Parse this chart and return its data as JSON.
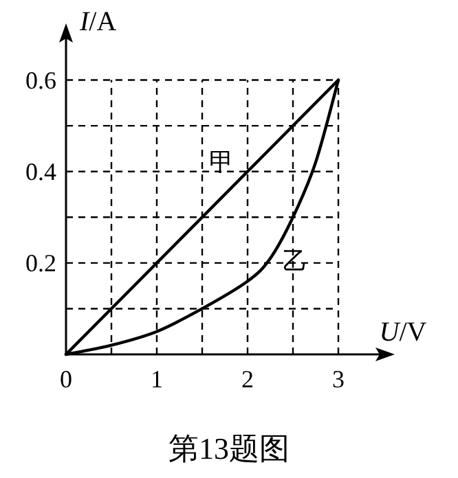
{
  "chart_data": {
    "type": "line",
    "xlabel": "U/V",
    "ylabel": "I/A",
    "x": [
      0,
      0.5,
      1,
      1.5,
      2,
      2.25,
      2.5,
      2.75,
      3
    ],
    "series": [
      {
        "name": "甲",
        "color": "#000000",
        "x": [
          0,
          3
        ],
        "values": [
          0,
          0.6
        ]
      },
      {
        "name": "乙",
        "color": "#000000",
        "values": [
          0,
          0.02,
          0.05,
          0.1,
          0.16,
          0.21,
          0.3,
          0.42,
          0.6
        ]
      }
    ],
    "xlim": [
      0,
      3.5
    ],
    "ylim": [
      0,
      0.7
    ],
    "xticks": [
      0,
      {
        "value": 0.5,
        "label": null
      },
      1,
      {
        "value": 1.5,
        "label": null
      },
      2,
      {
        "value": 2.5,
        "label": null
      },
      3
    ],
    "yticks": [
      {
        "value": 0,
        "label": null
      },
      {
        "value": 0.1,
        "label": null
      },
      0.2,
      {
        "value": 0.3,
        "label": null
      },
      0.4,
      {
        "value": 0.5,
        "label": null
      },
      0.6
    ],
    "grid": true,
    "legend": false,
    "marker": "none",
    "line_style": "solid",
    "annotations": [
      "第13题图"
    ]
  }
}
